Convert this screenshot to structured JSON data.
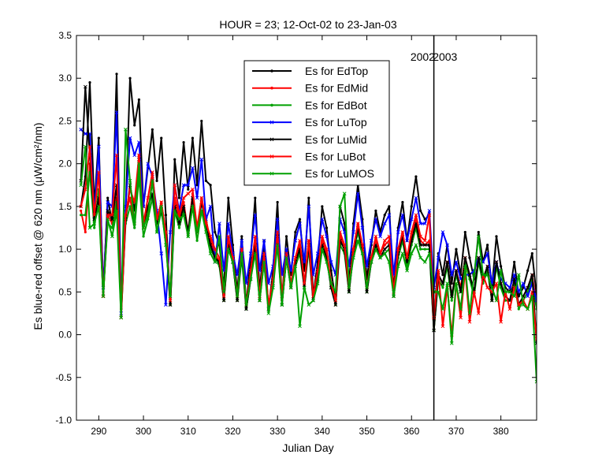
{
  "chart_data": {
    "type": "line",
    "title": "HOUR = 23; 12-Oct-02 to 23-Jan-03",
    "xlabel": "Julian Day",
    "ylabel": "Es blue-red offset @ 620 nm (μW/cm²/nm)",
    "xlim": [
      285,
      388
    ],
    "ylim": [
      -1.0,
      3.5
    ],
    "xticks": [
      290,
      300,
      310,
      320,
      330,
      340,
      350,
      360,
      370,
      380
    ],
    "yticks": [
      -1.0,
      -0.5,
      0.0,
      0.5,
      1.0,
      1.5,
      2.0,
      2.5,
      3.0,
      3.5
    ],
    "ytick_labels": [
      "-1.0",
      "-0.5",
      "0.0",
      "0.5",
      "1.0",
      "1.5",
      "2.0",
      "2.5",
      "3.0",
      "3.5"
    ],
    "grid": false,
    "legend_position": "top-center",
    "annotations": [
      {
        "text": "2002",
        "x": 362.5,
        "y": 3.25
      },
      {
        "text": "2003",
        "x": 367.5,
        "y": 3.25
      }
    ],
    "vline": {
      "x": 365
    },
    "x": [
      286,
      287,
      288,
      289,
      290,
      291,
      292,
      293,
      294,
      295,
      296,
      297,
      298,
      299,
      300,
      301,
      302,
      303,
      304,
      305,
      306,
      307,
      308,
      309,
      310,
      311,
      312,
      313,
      314,
      315,
      316,
      317,
      318,
      319,
      320,
      321,
      322,
      323,
      324,
      325,
      326,
      327,
      328,
      329,
      330,
      331,
      332,
      333,
      334,
      335,
      336,
      337,
      338,
      339,
      340,
      341,
      342,
      343,
      344,
      345,
      346,
      347,
      348,
      349,
      350,
      351,
      352,
      353,
      354,
      355,
      356,
      357,
      358,
      359,
      360,
      361,
      362,
      363,
      364,
      365,
      366,
      367,
      368,
      369,
      370,
      371,
      372,
      373,
      374,
      375,
      376,
      377,
      378,
      379,
      380,
      381,
      382,
      383,
      384,
      385,
      386,
      387,
      388
    ],
    "series": [
      {
        "name": "Es for EdTop",
        "color": "#000000",
        "marker": "dot",
        "values": [
          1.5,
          1.85,
          2.95,
          1.5,
          2.3,
          0.5,
          1.6,
          1.3,
          3.05,
          0.3,
          1.45,
          3.0,
          2.45,
          2.75,
          1.5,
          1.95,
          2.4,
          1.8,
          2.3,
          1.4,
          0.35,
          2.05,
          1.6,
          2.25,
          1.7,
          2.3,
          1.75,
          2.5,
          1.8,
          1.75,
          1.2,
          1.05,
          0.55,
          1.6,
          1.05,
          0.5,
          1.15,
          0.35,
          0.9,
          1.6,
          0.5,
          1.1,
          0.3,
          0.75,
          1.55,
          0.4,
          1.15,
          0.7,
          1.2,
          1.35,
          0.75,
          1.6,
          0.45,
          0.85,
          1.5,
          1.25,
          0.75,
          0.4,
          1.5,
          1.3,
          0.6,
          1.3,
          1.75,
          1.35,
          0.65,
          1.05,
          1.45,
          1.2,
          1.4,
          1.5,
          0.5,
          1.25,
          1.55,
          1.1,
          1.5,
          1.85,
          1.45,
          1.35,
          1.4,
          0.05,
          0.95,
          0.7,
          1.05,
          0.6,
          1.0,
          0.7,
          1.2,
          0.9,
          0.65,
          1.2,
          0.85,
          1.05,
          0.55,
          1.15,
          0.8,
          0.55,
          0.5,
          0.85,
          0.45,
          0.55,
          0.75,
          0.95,
          0.45
        ]
      },
      {
        "name": "Es for EdMid",
        "color": "#ff0000",
        "marker": "dot",
        "values": [
          1.45,
          1.2,
          2.0,
          1.35,
          1.6,
          0.45,
          1.4,
          1.3,
          1.6,
          0.3,
          1.4,
          1.6,
          1.3,
          2.1,
          1.25,
          1.45,
          1.8,
          1.3,
          1.55,
          1.2,
          0.35,
          1.6,
          1.35,
          1.55,
          1.2,
          1.65,
          1.2,
          1.6,
          1.35,
          1.1,
          0.95,
          0.85,
          0.4,
          1.1,
          0.9,
          0.4,
          0.95,
          0.3,
          0.7,
          1.1,
          0.4,
          0.9,
          0.3,
          0.6,
          1.2,
          0.4,
          0.95,
          0.55,
          0.85,
          1.05,
          0.6,
          1.1,
          0.4,
          0.7,
          1.1,
          0.95,
          0.6,
          0.35,
          1.15,
          1.0,
          0.55,
          1.0,
          1.3,
          1.05,
          0.5,
          0.9,
          1.1,
          0.95,
          1.05,
          1.1,
          0.45,
          1.0,
          1.2,
          0.85,
          1.15,
          1.35,
          1.1,
          1.05,
          1.1,
          0.05,
          0.7,
          0.6,
          0.85,
          0.45,
          0.75,
          0.55,
          0.9,
          0.7,
          0.5,
          0.9,
          0.65,
          0.8,
          0.4,
          0.85,
          0.6,
          0.45,
          0.4,
          0.65,
          0.35,
          0.45,
          0.55,
          0.7,
          0.35
        ]
      },
      {
        "name": "Es for EdBot",
        "color": "#00a000",
        "marker": "dot",
        "values": [
          1.4,
          1.4,
          1.9,
          1.25,
          1.7,
          0.5,
          1.3,
          1.25,
          1.55,
          0.3,
          1.3,
          1.5,
          1.25,
          1.85,
          1.15,
          1.35,
          1.6,
          1.2,
          1.45,
          1.1,
          0.35,
          1.45,
          1.25,
          1.45,
          1.15,
          1.5,
          1.1,
          1.45,
          1.25,
          1.0,
          0.9,
          0.8,
          0.4,
          1.0,
          0.85,
          0.4,
          0.9,
          0.3,
          0.65,
          1.0,
          0.4,
          0.85,
          0.3,
          0.6,
          1.1,
          0.35,
          0.9,
          0.55,
          0.8,
          0.95,
          0.55,
          1.0,
          0.4,
          0.65,
          1.0,
          0.9,
          0.55,
          0.35,
          1.05,
          0.95,
          0.5,
          0.95,
          1.2,
          0.95,
          0.5,
          0.85,
          1.0,
          0.9,
          0.95,
          1.0,
          0.45,
          0.9,
          1.1,
          0.8,
          1.05,
          1.25,
          1.0,
          1.0,
          1.0,
          0.05,
          0.65,
          0.55,
          0.8,
          0.4,
          0.7,
          0.5,
          0.85,
          0.65,
          0.45,
          0.85,
          0.6,
          0.75,
          0.4,
          0.8,
          0.55,
          0.4,
          0.4,
          0.6,
          0.3,
          0.4,
          0.5,
          0.65,
          0.3
        ]
      },
      {
        "name": "Es for LuTop",
        "color": "#0000ff",
        "marker": "x",
        "values": [
          2.4,
          2.35,
          2.35,
          1.4,
          2.2,
          0.55,
          1.55,
          1.5,
          2.6,
          0.25,
          1.5,
          2.3,
          2.1,
          2.25,
          1.5,
          2.0,
          1.85,
          1.45,
          0.95,
          0.35,
          1.2,
          1.75,
          1.45,
          1.75,
          1.75,
          1.95,
          1.6,
          2.05,
          1.35,
          1.5,
          0.85,
          1.3,
          0.75,
          1.3,
          0.95,
          0.7,
          1.1,
          0.6,
          0.95,
          1.4,
          0.75,
          1.1,
          0.6,
          0.8,
          1.35,
          0.7,
          1.0,
          0.75,
          1.1,
          1.3,
          0.85,
          1.5,
          0.7,
          0.95,
          1.35,
          1.15,
          0.85,
          0.7,
          1.35,
          1.2,
          0.8,
          1.2,
          1.65,
          1.25,
          0.8,
          1.1,
          1.35,
          1.15,
          1.3,
          1.4,
          0.7,
          1.2,
          1.4,
          1.1,
          1.35,
          1.6,
          1.3,
          1.3,
          1.45,
          0.55,
          0.9,
          1.2,
          1.05,
          0.7,
          0.85,
          0.65,
          0.7,
          0.7,
          0.75,
          0.9,
          0.85,
          0.95,
          0.6,
          0.85,
          0.65,
          0.6,
          0.55,
          0.7,
          0.5,
          0.6,
          0.45,
          0.6,
          0.4
        ]
      },
      {
        "name": "Es for LuMid",
        "color": "#000000",
        "marker": "x",
        "values": [
          1.8,
          2.9,
          2.1,
          1.35,
          1.6,
          0.45,
          1.45,
          1.35,
          1.75,
          0.2,
          1.35,
          1.75,
          1.45,
          2.05,
          1.3,
          1.5,
          1.65,
          1.3,
          1.45,
          1.15,
          0.35,
          1.5,
          1.3,
          1.5,
          1.2,
          1.6,
          1.2,
          1.55,
          1.3,
          1.05,
          0.9,
          0.85,
          0.4,
          1.05,
          0.85,
          0.4,
          0.95,
          0.3,
          0.65,
          1.05,
          0.4,
          0.9,
          0.3,
          0.6,
          1.15,
          0.35,
          0.9,
          0.55,
          0.85,
          1.0,
          0.55,
          1.05,
          0.4,
          0.65,
          1.05,
          0.9,
          0.55,
          0.35,
          1.1,
          1.0,
          0.5,
          0.95,
          1.25,
          1.0,
          0.5,
          0.85,
          1.05,
          0.9,
          1.0,
          1.05,
          0.45,
          0.95,
          1.15,
          0.85,
          1.1,
          1.3,
          1.05,
          1.05,
          1.05,
          0.05,
          0.7,
          0.6,
          0.85,
          0.45,
          0.75,
          0.5,
          0.9,
          0.7,
          0.5,
          0.9,
          0.65,
          0.8,
          0.4,
          0.85,
          0.6,
          0.45,
          0.4,
          0.65,
          0.35,
          0.45,
          0.55,
          0.7,
          -0.1
        ]
      },
      {
        "name": "Es for LuBot",
        "color": "#ff0000",
        "marker": "x",
        "values": [
          1.5,
          1.7,
          2.2,
          1.4,
          1.9,
          0.45,
          1.4,
          1.4,
          2.1,
          0.2,
          1.4,
          1.7,
          1.55,
          2.1,
          1.3,
          1.6,
          1.9,
          1.35,
          1.55,
          1.2,
          0.4,
          1.75,
          1.4,
          1.6,
          1.65,
          1.7,
          1.25,
          1.6,
          1.3,
          1.15,
          1.0,
          0.9,
          0.45,
          1.15,
          0.9,
          0.45,
          1.0,
          0.35,
          0.75,
          1.15,
          0.45,
          0.95,
          0.35,
          0.65,
          1.2,
          0.45,
          0.95,
          0.6,
          0.9,
          1.1,
          0.6,
          1.1,
          0.45,
          0.75,
          1.15,
          1.0,
          0.6,
          0.4,
          1.2,
          1.05,
          0.55,
          1.0,
          1.3,
          1.05,
          0.55,
          0.9,
          1.15,
          0.95,
          1.1,
          1.15,
          0.5,
          1.0,
          1.2,
          0.9,
          1.2,
          1.4,
          1.15,
          1.1,
          1.4,
          0.2,
          0.75,
          0.1,
          0.55,
          0.0,
          0.6,
          0.2,
          0.75,
          0.15,
          0.5,
          0.25,
          0.7,
          0.55,
          0.5,
          0.6,
          0.15,
          0.5,
          0.3,
          0.55,
          0.35,
          0.4,
          0.3,
          0.5,
          -0.05
        ]
      },
      {
        "name": "Es for LuMOS",
        "color": "#00a000",
        "marker": "x",
        "values": [
          1.75,
          2.2,
          1.25,
          1.3,
          1.5,
          0.45,
          1.35,
          1.15,
          1.45,
          0.2,
          2.4,
          1.8,
          1.3,
          2.0,
          1.25,
          1.4,
          1.8,
          1.2,
          1.5,
          1.05,
          0.45,
          1.45,
          1.35,
          1.4,
          1.15,
          1.5,
          1.2,
          1.45,
          1.2,
          0.95,
          0.85,
          1.15,
          0.5,
          1.0,
          0.85,
          0.45,
          0.95,
          0.35,
          0.65,
          0.95,
          0.4,
          0.85,
          0.25,
          0.55,
          1.05,
          0.35,
          0.9,
          0.55,
          0.8,
          0.1,
          0.55,
          0.35,
          0.4,
          0.6,
          1.0,
          0.85,
          0.6,
          0.5,
          1.5,
          1.65,
          0.55,
          0.9,
          1.1,
          0.95,
          0.55,
          0.85,
          1.0,
          0.9,
          0.95,
          0.85,
          0.45,
          0.8,
          0.95,
          0.75,
          0.95,
          1.05,
          0.9,
          0.85,
          0.95,
          0.5,
          0.5,
          0.3,
          0.6,
          -0.1,
          0.6,
          0.3,
          0.8,
          0.25,
          0.7,
          1.15,
          0.7,
          0.7,
          0.55,
          0.4,
          0.75,
          0.5,
          0.5,
          0.45,
          0.7,
          0.35,
          0.3,
          0.45,
          -0.55
        ]
      }
    ]
  }
}
